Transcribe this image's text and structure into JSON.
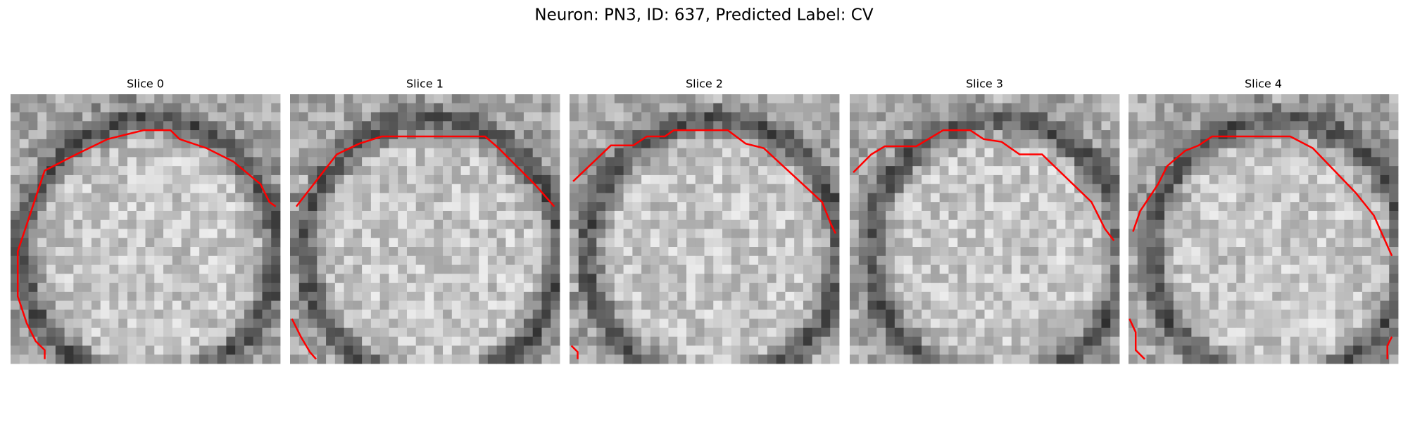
{
  "title": "Neuron: PN3, ID: 637, Predicted Label: CV",
  "panels": [
    {
      "title": "Slice 0"
    },
    {
      "title": "Slice 1"
    },
    {
      "title": "Slice 2"
    },
    {
      "title": "Slice 3"
    },
    {
      "title": "Slice 4"
    }
  ]
}
